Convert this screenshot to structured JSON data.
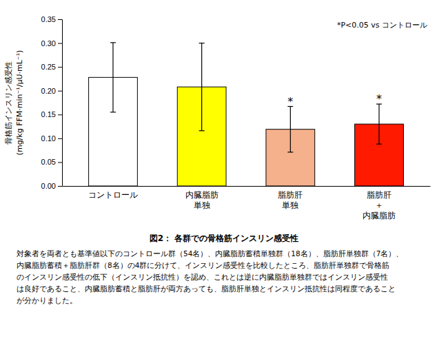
{
  "chart_data": {
    "type": "bar",
    "categories": [
      "コントロール",
      "内臓脂肪\n単独",
      "脂肪肝\n単独",
      "脂肪肝\n＋\n内臓脂肪"
    ],
    "values": [
      0.228,
      0.208,
      0.119,
      0.13
    ],
    "errors": [
      0.073,
      0.092,
      0.048,
      0.042
    ],
    "colors": [
      "#ffffff",
      "#ffff00",
      "#f5b08c",
      "#ff1a00"
    ],
    "significance": [
      false,
      false,
      true,
      true
    ],
    "significance_label": "*",
    "ylabel": "骨格筋インスリン感受性\n(mg/kg FFM·min⁻¹/μU·mL⁻¹)",
    "ylim": [
      0,
      0.35
    ],
    "yticks": [
      {
        "value": 0,
        "label": "0.00"
      },
      0.05,
      {
        "value": 0.1,
        "label": "0.10"
      },
      0.15,
      {
        "value": 0.2,
        "label": "0.20"
      },
      0.25,
      {
        "value": 0.3,
        "label": "0.30"
      },
      0.35
    ],
    "annotation": "*P<0.05 vs コントロール",
    "caption": "図2： 各群での骨格筋インスリン感受性",
    "caption_lines": [
      "対象者を両者とも基準値以下のコントロール群（54名）、内臓脂肪蓄積単独群（18名）、脂肪肝単独群（7名）、",
      "内臓脂肪蓄積＋脂肪肝群（8名）の4群に分けて、インスリン感受性を比較したところ、脂肪肝単独群で骨格筋",
      "のインスリン感受性の低下（インスリン抵抗性）を認め、これとは逆に内臓脂肪単独群ではインスリン感受性",
      "は良好であること、内臓脂肪蓄積と脂肪肝が両方あっても、脂肪肝単独とインスリン抵抗性は同程度であること",
      "が分かりました。"
    ],
    "grid": false
  }
}
